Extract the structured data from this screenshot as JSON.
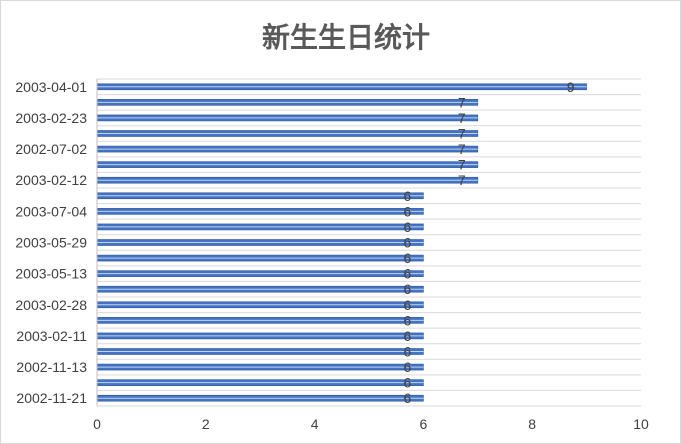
{
  "chart_data": {
    "type": "bar",
    "orientation": "horizontal",
    "title": "新生生日统计",
    "xlabel": "",
    "ylabel": "",
    "xlim": [
      0,
      10
    ],
    "x_ticks": [
      0,
      2,
      4,
      6,
      8,
      10
    ],
    "categories": [
      "2003-04-01",
      "",
      "2003-02-23",
      "",
      "2002-07-02",
      "",
      "2003-02-12",
      "",
      "2003-07-04",
      "",
      "2003-05-29",
      "",
      "2003-05-13",
      "",
      "2003-02-28",
      "",
      "2003-02-11",
      "",
      "2002-11-13",
      "",
      "2002-11-21"
    ],
    "values": [
      9,
      7,
      7,
      7,
      7,
      7,
      7,
      6,
      6,
      6,
      6,
      6,
      6,
      6,
      6,
      6,
      6,
      6,
      6,
      6,
      6
    ],
    "grid": "horizontal",
    "legend": "none",
    "bar_color": "#4472c4"
  }
}
